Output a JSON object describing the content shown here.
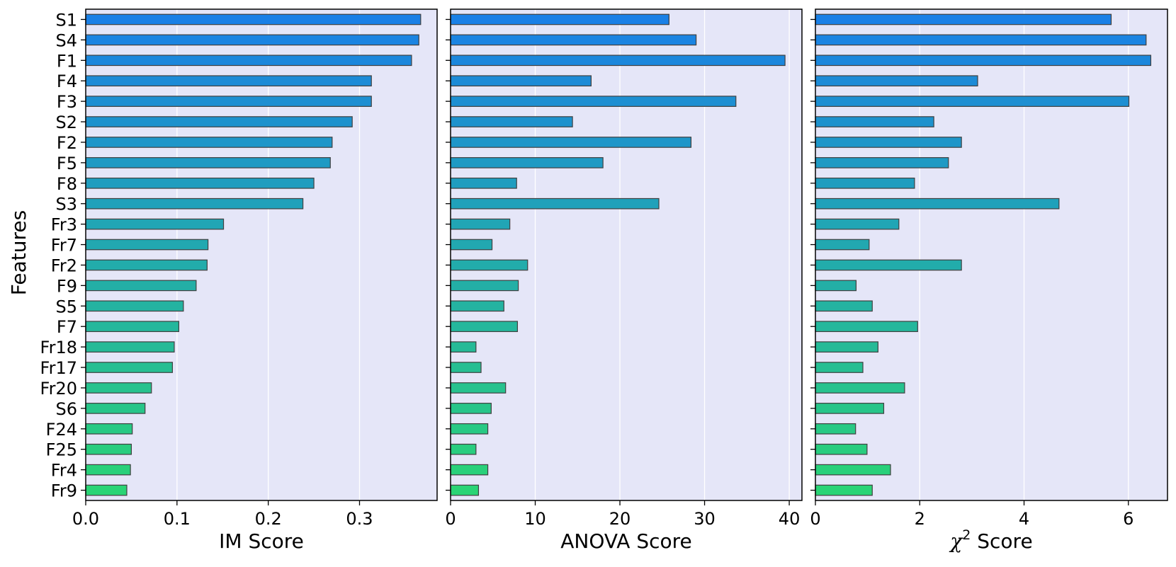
{
  "chart_data": {
    "type": "bar",
    "orientation": "horizontal",
    "grid": "vertical",
    "background_color": "#e5e6f8",
    "grid_color": "#ffffff",
    "bar_edge_color": "#404040",
    "bar_color_top": "#1a80e6",
    "bar_color_bottom": "#2ad475",
    "ylabel": "Features",
    "categories": [
      "S1",
      "S4",
      "F1",
      "F4",
      "F3",
      "S2",
      "F2",
      "F5",
      "F8",
      "S3",
      "Fr3",
      "Fr7",
      "Fr2",
      "F9",
      "S5",
      "F7",
      "Fr18",
      "Fr17",
      "Fr20",
      "S6",
      "F24",
      "F25",
      "Fr4",
      "Fr9"
    ],
    "panels": [
      {
        "xlabel": "IM Score",
        "xlim": [
          0,
          0.385
        ],
        "xticks": [
          0,
          0.1,
          0.2,
          0.3
        ],
        "xtick_labels": [
          "0.0",
          "0.1",
          "0.2",
          "0.3"
        ],
        "values": [
          0.367,
          0.365,
          0.357,
          0.313,
          0.313,
          0.292,
          0.27,
          0.268,
          0.25,
          0.238,
          0.151,
          0.134,
          0.133,
          0.121,
          0.107,
          0.102,
          0.097,
          0.095,
          0.072,
          0.065,
          0.051,
          0.05,
          0.049,
          0.045
        ]
      },
      {
        "xlabel": "ANOVA Score",
        "xlim": [
          0,
          41.5
        ],
        "xticks": [
          0,
          10,
          20,
          30,
          40
        ],
        "xtick_labels": [
          "0",
          "10",
          "20",
          "30",
          "40"
        ],
        "values": [
          25.8,
          29.0,
          39.5,
          16.6,
          33.7,
          14.4,
          28.4,
          18.0,
          7.8,
          24.6,
          7.0,
          4.9,
          9.1,
          8.0,
          6.3,
          7.9,
          3.0,
          3.6,
          6.5,
          4.8,
          4.4,
          3.0,
          4.4,
          3.3
        ]
      },
      {
        "xlabel": "Score",
        "xlabel_symbol": "χ",
        "xlabel_sup": "2",
        "xlim": [
          0,
          6.75
        ],
        "xticks": [
          0,
          2,
          4,
          6
        ],
        "xtick_labels": [
          "0",
          "2",
          "4",
          "6"
        ],
        "values": [
          5.67,
          6.34,
          6.43,
          3.11,
          6.01,
          2.27,
          2.8,
          2.55,
          1.9,
          4.67,
          1.6,
          1.03,
          2.8,
          0.78,
          1.09,
          1.96,
          1.2,
          0.91,
          1.71,
          1.31,
          0.77,
          0.99,
          1.44,
          1.09
        ]
      }
    ]
  }
}
